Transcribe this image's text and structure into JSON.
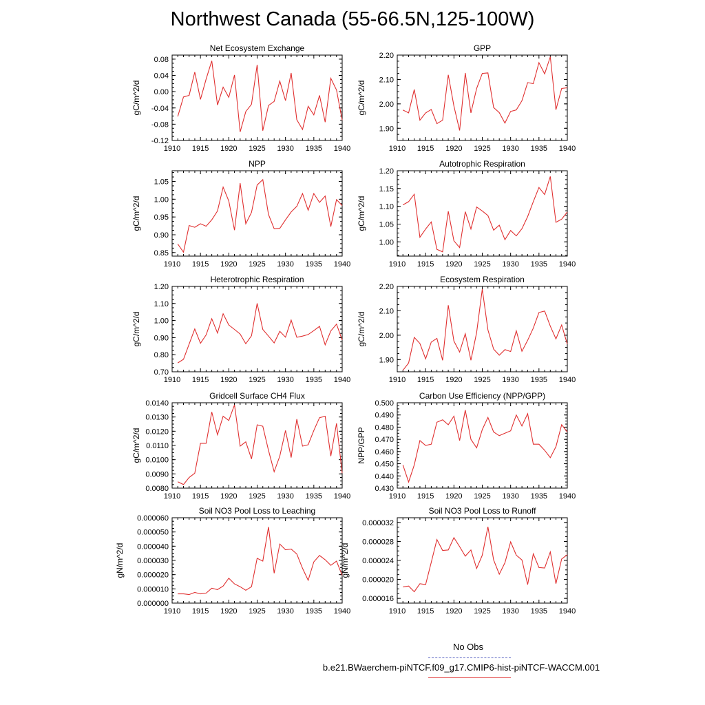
{
  "title": "Northwest Canada (55-66.5N,125-100W)",
  "legend": {
    "obs_label": "No Obs",
    "run_label": "b.e21.BWaerchem-piNTCF.f09_g17.CMIP6-hist-piNTCF-WACCM.001",
    "obs_color": "#5560c0",
    "run_color": "#e03030"
  },
  "chart_data": [
    {
      "type": "line",
      "title": "Net Ecosystem Exchange",
      "ylabel": "gC/m^2/d",
      "xlim": [
        1910,
        1940
      ],
      "ylim": [
        -0.12,
        0.09
      ],
      "xticks": [
        "1910",
        "1915",
        "1920",
        "1925",
        "1930",
        "1935",
        "1940"
      ],
      "yticks": [
        "0.08",
        "0.04",
        "0.00",
        "-0.04",
        "-0.08",
        "-0.12"
      ],
      "x": [
        1911,
        1912,
        1913,
        1914,
        1915,
        1916,
        1917,
        1918,
        1919,
        1920,
        1921,
        1922,
        1923,
        1924,
        1925,
        1926,
        1927,
        1928,
        1929,
        1930,
        1931,
        1932,
        1933,
        1934,
        1935,
        1936,
        1937,
        1938,
        1939,
        1940
      ],
      "values": [
        -0.061,
        -0.013,
        -0.009,
        0.048,
        -0.019,
        0.031,
        0.076,
        -0.033,
        0.011,
        -0.014,
        0.041,
        -0.099,
        -0.049,
        -0.031,
        0.066,
        -0.096,
        -0.034,
        -0.024,
        0.026,
        -0.022,
        0.046,
        -0.069,
        -0.093,
        -0.036,
        -0.057,
        -0.009,
        -0.075,
        0.033,
        0.004,
        -0.07
      ]
    },
    {
      "type": "line",
      "title": "GPP",
      "ylabel": "gC/m^2/d",
      "xlim": [
        1910,
        1940
      ],
      "ylim": [
        1.85,
        2.2
      ],
      "xticks": [
        "1910",
        "1915",
        "1920",
        "1925",
        "1930",
        "1935",
        "1940"
      ],
      "yticks": [
        "2.20",
        "2.10",
        "2.00",
        "1.90"
      ],
      "x": [
        1911,
        1912,
        1913,
        1914,
        1915,
        1916,
        1917,
        1918,
        1919,
        1920,
        1921,
        1922,
        1923,
        1924,
        1925,
        1926,
        1927,
        1928,
        1929,
        1930,
        1931,
        1932,
        1933,
        1934,
        1935,
        1936,
        1937,
        1938,
        1939,
        1940
      ],
      "values": [
        1.975,
        1.963,
        2.059,
        1.933,
        1.963,
        1.977,
        1.919,
        1.933,
        2.119,
        1.991,
        1.891,
        2.127,
        1.963,
        2.063,
        2.125,
        2.127,
        1.985,
        1.964,
        1.921,
        1.969,
        1.975,
        2.013,
        2.087,
        2.083,
        2.169,
        2.123,
        2.193,
        1.976,
        2.063,
        2.066
      ]
    },
    {
      "type": "line",
      "title": "NPP",
      "ylabel": "gC/m^2/d",
      "xlim": [
        1910,
        1940
      ],
      "ylim": [
        0.84,
        1.08
      ],
      "xticks": [
        "1910",
        "1915",
        "1920",
        "1925",
        "1930",
        "1935",
        "1940"
      ],
      "yticks": [
        "1.05",
        "1.00",
        "0.95",
        "0.90",
        "0.85"
      ],
      "x": [
        1911,
        1912,
        1913,
        1914,
        1915,
        1916,
        1917,
        1918,
        1919,
        1920,
        1921,
        1922,
        1923,
        1924,
        1925,
        1926,
        1927,
        1928,
        1929,
        1930,
        1931,
        1932,
        1933,
        1934,
        1935,
        1936,
        1937,
        1938,
        1939,
        1940
      ],
      "values": [
        0.874,
        0.851,
        0.926,
        0.921,
        0.931,
        0.924,
        0.942,
        0.967,
        1.034,
        0.995,
        0.913,
        1.045,
        0.931,
        0.963,
        1.04,
        1.055,
        0.957,
        0.917,
        0.918,
        0.942,
        0.964,
        0.98,
        1.016,
        0.969,
        1.016,
        0.991,
        1.009,
        0.923,
        0.999,
        0.982
      ]
    },
    {
      "type": "line",
      "title": "Autotrophic Respiration",
      "ylabel": "gC/m^2/d",
      "xlim": [
        1910,
        1940
      ],
      "ylim": [
        0.96,
        1.2
      ],
      "xticks": [
        "1910",
        "1915",
        "1920",
        "1925",
        "1930",
        "1935",
        "1940"
      ],
      "yticks": [
        "1.20",
        "1.15",
        "1.10",
        "1.05",
        "1.00"
      ],
      "x": [
        1911,
        1912,
        1913,
        1914,
        1915,
        1916,
        1917,
        1918,
        1919,
        1920,
        1921,
        1922,
        1923,
        1924,
        1925,
        1926,
        1927,
        1928,
        1929,
        1930,
        1931,
        1932,
        1933,
        1934,
        1935,
        1936,
        1937,
        1938,
        1939,
        1940
      ],
      "values": [
        1.104,
        1.113,
        1.134,
        1.013,
        1.036,
        1.056,
        0.979,
        0.972,
        1.086,
        1.003,
        0.984,
        1.085,
        1.036,
        1.098,
        1.087,
        1.074,
        1.033,
        1.047,
        1.006,
        1.032,
        1.017,
        1.037,
        1.071,
        1.113,
        1.153,
        1.133,
        1.184,
        1.055,
        1.064,
        1.084
      ]
    },
    {
      "type": "line",
      "title": "Heterotrophic Respiration",
      "ylabel": "gC/m^2/d",
      "xlim": [
        1910,
        1940
      ],
      "ylim": [
        0.7,
        1.2
      ],
      "xticks": [
        "1910",
        "1915",
        "1920",
        "1925",
        "1930",
        "1935",
        "1940"
      ],
      "yticks": [
        "1.20",
        "1.10",
        "1.00",
        "0.90",
        "0.80",
        "0.70"
      ],
      "x": [
        1911,
        1912,
        1913,
        1914,
        1915,
        1916,
        1917,
        1918,
        1919,
        1920,
        1921,
        1922,
        1923,
        1924,
        1925,
        1926,
        1927,
        1928,
        1929,
        1930,
        1931,
        1932,
        1933,
        1934,
        1935,
        1936,
        1937,
        1938,
        1939,
        1940
      ],
      "values": [
        0.752,
        0.773,
        0.862,
        0.951,
        0.867,
        0.916,
        1.011,
        0.927,
        1.04,
        0.974,
        0.948,
        0.921,
        0.864,
        0.911,
        1.101,
        0.948,
        0.909,
        0.869,
        0.937,
        0.903,
        1.003,
        0.902,
        0.909,
        0.918,
        0.941,
        0.966,
        0.858,
        0.939,
        0.979,
        0.886
      ]
    },
    {
      "type": "line",
      "title": "Ecosystem Respiration",
      "ylabel": "gC/m^2/d",
      "xlim": [
        1910,
        1940
      ],
      "ylim": [
        1.85,
        2.2
      ],
      "xticks": [
        "1910",
        "1915",
        "1920",
        "1925",
        "1930",
        "1935",
        "1940"
      ],
      "yticks": [
        "2.20",
        "2.10",
        "2.00",
        "1.90"
      ],
      "x": [
        1911,
        1912,
        1913,
        1914,
        1915,
        1916,
        1917,
        1918,
        1919,
        1920,
        1921,
        1922,
        1923,
        1924,
        1925,
        1926,
        1927,
        1928,
        1929,
        1930,
        1931,
        1932,
        1933,
        1934,
        1935,
        1936,
        1937,
        1938,
        1939,
        1940
      ],
      "values": [
        1.856,
        1.886,
        1.991,
        1.966,
        1.903,
        1.972,
        1.987,
        1.897,
        2.123,
        1.976,
        1.931,
        2.006,
        1.897,
        2.011,
        2.189,
        2.022,
        1.943,
        1.918,
        1.941,
        1.933,
        2.018,
        1.934,
        1.979,
        2.029,
        2.093,
        2.099,
        2.037,
        1.985,
        2.042,
        1.963
      ]
    },
    {
      "type": "line",
      "title": "Gridcell Surface CH4 Flux",
      "ylabel": "gC/m^2/d",
      "xlim": [
        1910,
        1940
      ],
      "ylim": [
        0.008,
        0.014
      ],
      "xticks": [
        "1910",
        "1915",
        "1920",
        "1925",
        "1930",
        "1935",
        "1940"
      ],
      "yticks": [
        "0.0140",
        "0.0130",
        "0.0120",
        "0.0110",
        "0.0100",
        "0.0090",
        "0.0080"
      ],
      "x": [
        1911,
        1912,
        1913,
        1914,
        1915,
        1916,
        1917,
        1918,
        1919,
        1920,
        1921,
        1922,
        1923,
        1924,
        1925,
        1926,
        1927,
        1928,
        1929,
        1930,
        1931,
        1932,
        1933,
        1934,
        1935,
        1936,
        1937,
        1938,
        1939,
        1940
      ],
      "values": [
        0.00845,
        0.00825,
        0.00875,
        0.00905,
        0.01115,
        0.01115,
        0.01335,
        0.01175,
        0.01305,
        0.01275,
        0.01385,
        0.01095,
        0.01125,
        0.01005,
        0.01245,
        0.01235,
        0.01065,
        0.00915,
        0.01025,
        0.01205,
        0.01015,
        0.01285,
        0.01095,
        0.01105,
        0.01205,
        0.01295,
        0.01305,
        0.01025,
        0.01255,
        0.00905
      ]
    },
    {
      "type": "line",
      "title": "Carbon Use Efficiency (NPP/GPP)",
      "ylabel": "NPP/GPP",
      "xlim": [
        1910,
        1940
      ],
      "ylim": [
        0.43,
        0.5
      ],
      "xticks": [
        "1910",
        "1915",
        "1920",
        "1925",
        "1930",
        "1935",
        "1940"
      ],
      "yticks": [
        "0.500",
        "0.490",
        "0.480",
        "0.470",
        "0.460",
        "0.450",
        "0.440",
        "0.430"
      ],
      "x": [
        1911,
        1912,
        1913,
        1914,
        1915,
        1916,
        1917,
        1918,
        1919,
        1920,
        1921,
        1922,
        1923,
        1924,
        1925,
        1926,
        1927,
        1928,
        1929,
        1930,
        1931,
        1932,
        1933,
        1934,
        1935,
        1936,
        1937,
        1938,
        1939,
        1940
      ],
      "values": [
        0.449,
        0.435,
        0.449,
        0.469,
        0.465,
        0.466,
        0.484,
        0.486,
        0.482,
        0.489,
        0.469,
        0.494,
        0.47,
        0.463,
        0.478,
        0.488,
        0.476,
        0.473,
        0.475,
        0.477,
        0.49,
        0.481,
        0.491,
        0.466,
        0.466,
        0.461,
        0.455,
        0.464,
        0.482,
        0.476
      ]
    },
    {
      "type": "line",
      "title": "Soil NO3 Pool Loss to Leaching",
      "ylabel": "gN/m^2/d",
      "xlim": [
        1910,
        1940
      ],
      "ylim": [
        0.0,
        6e-05
      ],
      "xticks": [
        "1910",
        "1915",
        "1920",
        "1925",
        "1930",
        "1935",
        "1940"
      ],
      "yticks": [
        "0.000060",
        "0.000050",
        "0.000040",
        "0.000030",
        "0.000020",
        "0.000010",
        "0.000000"
      ],
      "x": [
        1911,
        1912,
        1913,
        1914,
        1915,
        1916,
        1917,
        1918,
        1919,
        1920,
        1921,
        1922,
        1923,
        1924,
        1925,
        1926,
        1927,
        1928,
        1929,
        1930,
        1931,
        1932,
        1933,
        1934,
        1935,
        1936,
        1937,
        1938,
        1939,
        1940
      ],
      "values": [
        6.5e-06,
        6.5e-06,
        6e-06,
        7.5e-06,
        6.5e-06,
        7e-06,
        1.05e-05,
        9.5e-06,
        1.2e-05,
        1.75e-05,
        1.35e-05,
        1.15e-05,
        9e-06,
        1.15e-05,
        3.15e-05,
        2.95e-05,
        5.35e-05,
        2.1e-05,
        4.15e-05,
        3.75e-05,
        3.8e-05,
        3.45e-05,
        2.45e-05,
        1.6e-05,
        2.9e-05,
        3.35e-05,
        3.05e-05,
        2.65e-05,
        2.95e-05,
        1.95e-05
      ]
    },
    {
      "type": "line",
      "title": "Soil NO3 Pool Loss to Runoff",
      "ylabel": "gN/m^2/d",
      "xlim": [
        1910,
        1940
      ],
      "ylim": [
        1.5e-05,
        3.3e-05
      ],
      "xticks": [
        "1910",
        "1915",
        "1920",
        "1925",
        "1930",
        "1935",
        "1940"
      ],
      "yticks": [
        "0.000032",
        "0.000028",
        "0.000024",
        "0.000020",
        "0.000016"
      ],
      "x": [
        1911,
        1912,
        1913,
        1914,
        1915,
        1916,
        1917,
        1918,
        1919,
        1920,
        1921,
        1922,
        1923,
        1924,
        1925,
        1926,
        1927,
        1928,
        1929,
        1930,
        1931,
        1932,
        1933,
        1934,
        1935,
        1936,
        1937,
        1938,
        1939,
        1940
      ],
      "values": [
        1.84e-05,
        1.86e-05,
        1.74e-05,
        1.91e-05,
        1.89e-05,
        2.36e-05,
        2.84e-05,
        2.61e-05,
        2.62e-05,
        2.88e-05,
        2.69e-05,
        2.49e-05,
        2.62e-05,
        2.23e-05,
        2.51e-05,
        3.11e-05,
        2.41e-05,
        2.11e-05,
        2.35e-05,
        2.79e-05,
        2.51e-05,
        2.41e-05,
        1.89e-05,
        2.54e-05,
        2.25e-05,
        2.24e-05,
        2.58e-05,
        1.91e-05,
        2.43e-05,
        2.52e-05
      ]
    }
  ]
}
